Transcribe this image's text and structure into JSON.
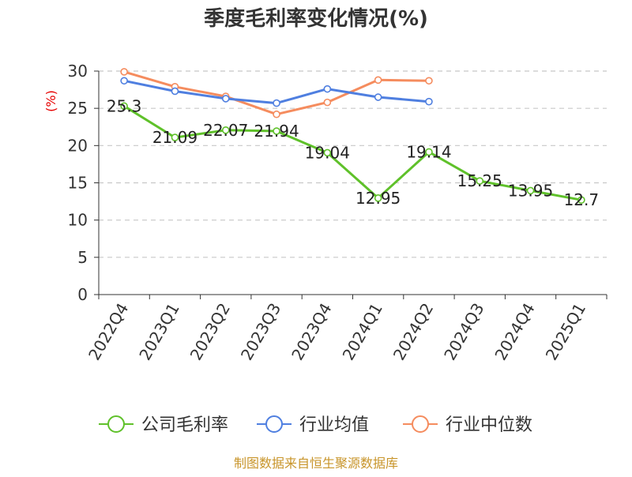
{
  "chart_data": {
    "type": "line",
    "title": "季度毛利率变化情况(%)",
    "ylabel": "(%)",
    "xlabel": "",
    "ylim": [
      0,
      30
    ],
    "yticks": [
      0,
      5,
      10,
      15,
      20,
      25,
      30
    ],
    "grid": true,
    "legend_position": "bottom",
    "categories": [
      "2022Q4",
      "2023Q1",
      "2023Q2",
      "2023Q3",
      "2023Q4",
      "2024Q1",
      "2024Q2",
      "2024Q3",
      "2024Q4",
      "2025Q1"
    ],
    "series": [
      {
        "name": "公司毛利率",
        "color": "#5fc12a",
        "values": [
          25.3,
          21.09,
          22.07,
          21.94,
          19.04,
          12.95,
          19.14,
          15.25,
          13.95,
          12.7
        ],
        "labels": [
          "25.3",
          "21.09",
          "22.07",
          "21.94",
          "19.04",
          "12.95",
          "19.14",
          "15.25",
          "13.95",
          "12.7"
        ]
      },
      {
        "name": "行业均值",
        "color": "#4f7fe0",
        "values": [
          28.7,
          27.3,
          26.3,
          25.7,
          27.6,
          26.5,
          25.9,
          null,
          null,
          null
        ]
      },
      {
        "name": "行业中位数",
        "color": "#f58c5e",
        "values": [
          29.9,
          27.9,
          26.6,
          24.2,
          25.8,
          28.8,
          28.7,
          null,
          null,
          null
        ]
      }
    ]
  },
  "footer": {
    "source": "制图数据来自恒生聚源数据库"
  }
}
